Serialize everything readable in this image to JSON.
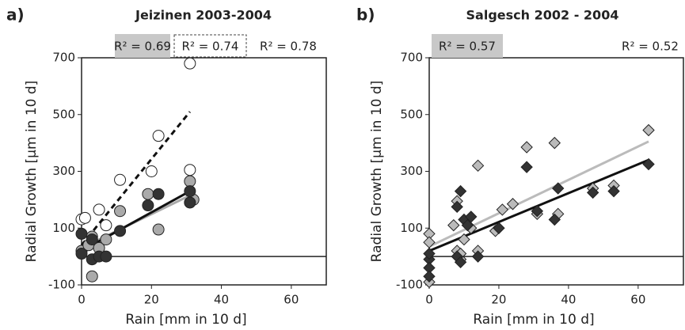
{
  "chart_data": [
    {
      "type": "scatter",
      "panel_label": "a)",
      "title": "Jeizinen 2003-2004",
      "x_label": "Rain [mm in 10 d]",
      "y_label": "Radial Growth [µm in 10 d]",
      "xlim": [
        0,
        70
      ],
      "ylim": [
        -100,
        700
      ],
      "xticks": [
        0,
        20,
        40,
        60
      ],
      "yticks": [
        -100,
        100,
        300,
        500,
        700
      ],
      "annotations": [
        {
          "text": "R² = 0.69",
          "style": "filled"
        },
        {
          "text": "R² = 0.74",
          "style": "dashed"
        },
        {
          "text": "R² = 0.78",
          "style": "plain"
        }
      ],
      "series": [
        {
          "marker": "circle",
          "color": "#ffffff",
          "x": [
            0,
            1,
            5,
            7,
            11,
            20,
            22,
            31,
            31,
            3
          ],
          "values": [
            131,
            136,
            165,
            110,
            270,
            300,
            425,
            305,
            680,
            55
          ]
        },
        {
          "marker": "circle",
          "color": "#aaaaaa",
          "x": [
            0,
            2,
            3,
            3,
            5,
            7,
            11,
            19,
            22,
            31,
            32
          ],
          "values": [
            20,
            40,
            -70,
            70,
            30,
            60,
            160,
            220,
            95,
            265,
            200
          ]
        },
        {
          "marker": "circle",
          "color": "#333333",
          "x": [
            0,
            0,
            3,
            5,
            7,
            11,
            19,
            22,
            31,
            31,
            3
          ],
          "values": [
            80,
            10,
            -10,
            0,
            0,
            90,
            180,
            220,
            190,
            230,
            60
          ]
        }
      ],
      "fits": [
        {
          "color": "#111111",
          "dashed": true,
          "x": [
            0,
            31
          ],
          "values": [
            40,
            510
          ]
        },
        {
          "color": "#aaaaaa",
          "dashed": false,
          "x": [
            0,
            31
          ],
          "values": [
            30,
            215
          ]
        },
        {
          "color": "#111111",
          "dashed": false,
          "x": [
            0,
            31
          ],
          "values": [
            20,
            230
          ]
        }
      ]
    },
    {
      "type": "scatter",
      "panel_label": "b)",
      "title": "Salgesch 2002 - 2004",
      "x_label": "Rain [mm in 10 d]",
      "y_label": "Radial Growth [µm in 10 d]",
      "xlim": [
        0,
        73
      ],
      "ylim": [
        -100,
        700
      ],
      "xticks": [
        0,
        20,
        40,
        60
      ],
      "yticks": [
        -100,
        100,
        300,
        500,
        700
      ],
      "annotations": [
        {
          "text": "R² = 0.57",
          "style": "filled"
        },
        {
          "text": "R² = 0.52",
          "style": "plain"
        }
      ],
      "series": [
        {
          "marker": "diamond",
          "color": "#bbbbbb",
          "x": [
            0,
            0,
            0,
            7,
            8,
            9,
            9,
            10,
            12,
            14,
            14,
            19,
            21,
            24,
            28,
            31,
            36,
            37,
            47,
            53,
            63,
            8
          ],
          "values": [
            80,
            50,
            -90,
            110,
            20,
            -10,
            10,
            60,
            100,
            320,
            20,
            90,
            165,
            185,
            385,
            150,
            400,
            150,
            240,
            250,
            445,
            195
          ]
        },
        {
          "marker": "diamond",
          "color": "#333333",
          "x": [
            0,
            0,
            0,
            0,
            8,
            9,
            9,
            10,
            11,
            12,
            14,
            20,
            28,
            31,
            36,
            37,
            47,
            53,
            63,
            8
          ],
          "values": [
            -10,
            -40,
            -70,
            10,
            0,
            230,
            -20,
            130,
            110,
            140,
            0,
            100,
            315,
            160,
            130,
            240,
            225,
            230,
            325,
            175
          ]
        }
      ],
      "fits": [
        {
          "color": "#bbbbbb",
          "dashed": false,
          "x": [
            0,
            63
          ],
          "values": [
            35,
            405
          ]
        },
        {
          "color": "#111111",
          "dashed": false,
          "x": [
            0,
            63
          ],
          "values": [
            20,
            340
          ]
        }
      ]
    }
  ]
}
